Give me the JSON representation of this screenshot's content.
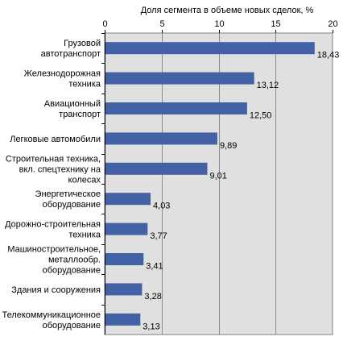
{
  "chart_data": {
    "type": "bar",
    "orientation": "horizontal",
    "title": "Доля сегмента в объеме новых сделок, %",
    "xlabel": "Доля сегмента в объеме новых сделок, %",
    "ylabel": "",
    "xlim": [
      0,
      20
    ],
    "x_ticks": [
      "0",
      "5",
      "10",
      "15",
      "20"
    ],
    "x_axis_position": "top",
    "grid": true,
    "legend": "none",
    "bar_color": "#4361A5",
    "plot_background": "#E0E0E0",
    "categories": [
      [
        "Грузовой",
        "автотранспорт"
      ],
      [
        "Железнодорожная",
        "техника"
      ],
      [
        "Авиационный",
        "транспорт"
      ],
      [
        "Легковые автомобили"
      ],
      [
        "Строительная техника,",
        "вкл. спецтехнику на",
        "колесах"
      ],
      [
        "Энергетическое",
        "оборудование"
      ],
      [
        "Дорожно-строительная",
        "техника"
      ],
      [
        "Машиностроительное,",
        "металлообр.",
        "оборудование"
      ],
      [
        "Здания и сооружения"
      ],
      [
        "Телекоммуникационное",
        "оборудование"
      ]
    ],
    "values": [
      18.43,
      13.12,
      12.5,
      9.89,
      9.01,
      4.03,
      3.77,
      3.41,
      3.28,
      3.13
    ],
    "data_labels": [
      "18,43",
      "13,12",
      "12,50",
      "9,89",
      "9,01",
      "4,03",
      "3,77",
      "3,41",
      "3,28",
      "3,13"
    ]
  }
}
